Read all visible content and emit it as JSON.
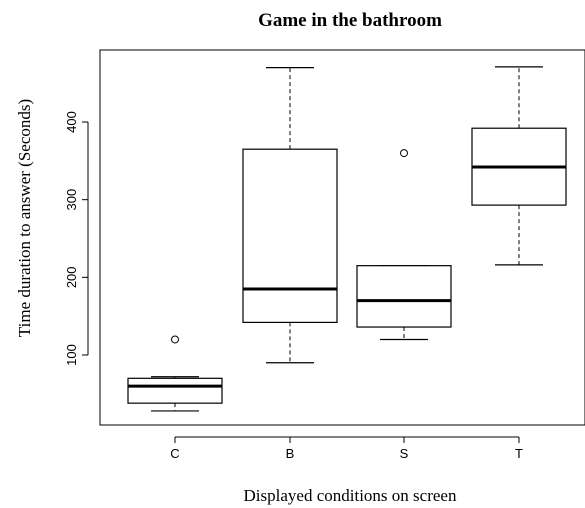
{
  "chart_data": {
    "type": "box",
    "title": "Game in the bathroom",
    "xlabel": "Displayed conditions on screen",
    "ylabel": "Time duration to answer (Seconds)",
    "categories": [
      "C",
      "B",
      "S",
      "T"
    ],
    "ylim": [
      0,
      490
    ],
    "yticks": [
      100,
      200,
      300,
      400
    ],
    "grid": false,
    "boxes": [
      {
        "category": "C",
        "whisker_low": 28,
        "q1": 38,
        "median": 60,
        "q3": 70,
        "whisker_high": 72,
        "outliers": [
          120
        ]
      },
      {
        "category": "B",
        "whisker_low": 90,
        "q1": 142,
        "median": 185,
        "q3": 365,
        "whisker_high": 470,
        "outliers": []
      },
      {
        "category": "S",
        "whisker_low": 120,
        "q1": 136,
        "median": 170,
        "q3": 215,
        "whisker_high": 215,
        "outliers": [
          360
        ]
      },
      {
        "category": "T",
        "whisker_low": 216,
        "q1": 293,
        "median": 342,
        "q3": 392,
        "whisker_high": 471,
        "outliers": []
      }
    ]
  }
}
